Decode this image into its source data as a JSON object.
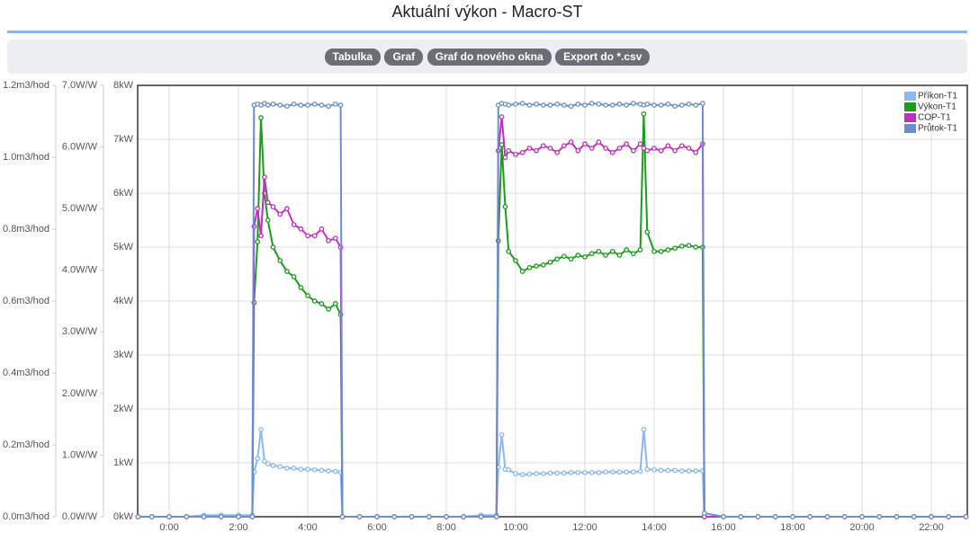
{
  "header": {
    "title": "Aktuální výkon - Macro-ST"
  },
  "toolbar": {
    "buttons": [
      "Tabulka",
      "Graf",
      "Graf do nového okna",
      "Export do *.csv"
    ]
  },
  "chart_data": {
    "type": "line",
    "grid": true,
    "legend": "top-right",
    "xlim": [
      -0.91,
      23.04
    ],
    "xticks": [
      {
        "value": 0,
        "label": "0:00"
      },
      {
        "value": 2,
        "label": "2:00"
      },
      {
        "value": 4,
        "label": "4:00"
      },
      {
        "value": 6,
        "label": "6:00"
      },
      {
        "value": 8,
        "label": "8:00"
      },
      {
        "value": 10,
        "label": "10:00"
      },
      {
        "value": 12,
        "label": "12:00"
      },
      {
        "value": 14,
        "label": "14:00"
      },
      {
        "value": 16,
        "label": "16:00"
      },
      {
        "value": 18,
        "label": "18:00"
      },
      {
        "value": 20,
        "label": "20:00"
      },
      {
        "value": 22,
        "label": "22:00"
      }
    ],
    "ylim": [
      0,
      8
    ],
    "yticks": [
      {
        "value": 0,
        "label": "0kW"
      },
      {
        "value": 1,
        "label": "1kW"
      },
      {
        "value": 2,
        "label": "2kW"
      },
      {
        "value": 3,
        "label": "3kW"
      },
      {
        "value": 4,
        "label": "4kW"
      },
      {
        "value": 5,
        "label": "5kW"
      },
      {
        "value": 6,
        "label": "6kW"
      },
      {
        "value": 7,
        "label": "7kW"
      },
      {
        "value": 8,
        "label": "8kW"
      }
    ],
    "y2lim": [
      0,
      7
    ],
    "y2ticks": [
      {
        "value": 0,
        "label": "0.0W/W"
      },
      {
        "value": 1,
        "label": "1.0W/W"
      },
      {
        "value": 2,
        "label": "2.0W/W"
      },
      {
        "value": 3,
        "label": "3.0W/W"
      },
      {
        "value": 4,
        "label": "4.0W/W"
      },
      {
        "value": 5,
        "label": "5.0W/W"
      },
      {
        "value": 6,
        "label": "6.0W/W"
      },
      {
        "value": 7,
        "label": "7.0W/W"
      }
    ],
    "y3lim": [
      0,
      1.2
    ],
    "y3ticks": [
      {
        "value": 0,
        "label": "0.0m3/hod"
      },
      {
        "value": 0.2,
        "label": "0.2m3/hod"
      },
      {
        "value": 0.4,
        "label": "0.4m3/hod"
      },
      {
        "value": 0.6,
        "label": "0.6m3/hod"
      },
      {
        "value": 0.8,
        "label": "0.8m3/hod"
      },
      {
        "value": 1,
        "label": "1.0m3/hod"
      },
      {
        "value": 1.2,
        "label": "1.2m3/hod"
      }
    ],
    "x": [
      -0.9,
      -0.5,
      0,
      0.5,
      1,
      1.5,
      2,
      2.4,
      2.45,
      2.55,
      2.65,
      2.75,
      2.85,
      3.0,
      3.2,
      3.4,
      3.6,
      3.8,
      4.0,
      4.2,
      4.4,
      4.6,
      4.8,
      4.95,
      5.0,
      5.5,
      6,
      6.5,
      7,
      7.5,
      8,
      8.5,
      9,
      9.45,
      9.5,
      9.6,
      9.7,
      9.8,
      10.0,
      10.2,
      10.4,
      10.6,
      10.8,
      11.0,
      11.2,
      11.4,
      11.6,
      11.8,
      12.0,
      12.2,
      12.4,
      12.6,
      12.8,
      13.0,
      13.2,
      13.4,
      13.6,
      13.7,
      13.8,
      14.0,
      14.2,
      14.4,
      14.6,
      14.8,
      15.0,
      15.2,
      15.4,
      15.45,
      16,
      16.5,
      17,
      17.5,
      18,
      18.5,
      19,
      19.5,
      20,
      20.5,
      21,
      21.5,
      22,
      22.5,
      23
    ],
    "series": [
      {
        "name": "Příkon-T1",
        "color": "#8ab8f0",
        "values": [
          0,
          0,
          0,
          0,
          0.03,
          0.03,
          0.03,
          0.03,
          0.83,
          1.08,
          1.62,
          1.03,
          0.98,
          0.95,
          0.93,
          0.9,
          0.9,
          0.88,
          0.88,
          0.87,
          0.86,
          0.85,
          0.84,
          0.82,
          0,
          0,
          0,
          0,
          0,
          0,
          0,
          0,
          0.03,
          0.03,
          0.92,
          1.52,
          0.88,
          0.87,
          0.8,
          0.78,
          0.79,
          0.8,
          0.8,
          0.81,
          0.81,
          0.81,
          0.82,
          0.82,
          0.82,
          0.82,
          0.82,
          0.83,
          0.83,
          0.83,
          0.83,
          0.83,
          0.84,
          1.62,
          0.88,
          0.87,
          0.86,
          0.86,
          0.86,
          0.85,
          0.85,
          0.85,
          0.85,
          0,
          0,
          0,
          0,
          0,
          0,
          0,
          0,
          0,
          0,
          0,
          0,
          0,
          0,
          0,
          0
        ]
      },
      {
        "name": "Výkon-T1",
        "color": "#1a9e1a",
        "values": [
          0,
          0,
          0,
          0,
          0,
          0,
          0,
          0,
          3.97,
          5.1,
          7.4,
          6.0,
          5.5,
          5.0,
          4.75,
          4.55,
          4.45,
          4.25,
          4.1,
          4.0,
          3.95,
          3.85,
          3.95,
          3.75,
          0,
          0,
          0,
          0,
          0,
          0,
          0,
          0,
          0,
          0,
          5.12,
          6.9,
          5.75,
          4.92,
          4.75,
          4.55,
          4.62,
          4.65,
          4.67,
          4.72,
          4.78,
          4.83,
          4.78,
          4.85,
          4.82,
          4.88,
          4.92,
          4.85,
          4.92,
          4.85,
          4.95,
          4.88,
          4.95,
          7.47,
          5.28,
          4.92,
          4.92,
          4.95,
          4.98,
          5.02,
          5.03,
          5.0,
          5.0,
          0,
          0,
          0,
          0,
          0,
          0,
          0,
          0,
          0,
          0,
          0,
          0,
          0,
          0,
          0,
          0
        ]
      },
      {
        "name": "COP-T1",
        "color": "#c030c0",
        "axis": "y2",
        "values": [
          0,
          0,
          0,
          0,
          0,
          0,
          0,
          0,
          4.71,
          5.0,
          4.56,
          5.51,
          5.1,
          5.03,
          4.91,
          5.0,
          4.74,
          4.67,
          4.56,
          4.56,
          4.67,
          4.48,
          4.52,
          4.37,
          0,
          0,
          0,
          0,
          0,
          0,
          0,
          0,
          0,
          0,
          5.94,
          6.49,
          5.83,
          5.94,
          5.88,
          5.91,
          5.98,
          5.94,
          6.02,
          5.98,
          5.91,
          6.02,
          6.08,
          5.94,
          6.05,
          5.98,
          6.08,
          5.98,
          5.91,
          5.98,
          6.05,
          5.94,
          6.05,
          5.98,
          5.94,
          5.98,
          5.94,
          6.02,
          5.94,
          6.02,
          5.98,
          5.91,
          6.05,
          0,
          0,
          0,
          0,
          0,
          0,
          0,
          0,
          0,
          0,
          0,
          0,
          0,
          0,
          0,
          0
        ]
      },
      {
        "name": "Průtok-T1",
        "color": "#6a8fd0",
        "axis": "y3",
        "values": [
          0,
          0,
          0,
          0,
          0,
          0,
          0,
          0,
          1.145,
          1.148,
          1.145,
          1.15,
          1.145,
          1.148,
          1.145,
          1.142,
          1.148,
          1.145,
          1.145,
          1.148,
          1.145,
          1.142,
          1.148,
          1.145,
          0,
          0,
          0,
          0,
          0,
          0,
          0,
          0,
          0,
          0,
          1.145,
          1.15,
          1.148,
          1.145,
          1.148,
          1.15,
          1.145,
          1.148,
          1.145,
          1.145,
          1.148,
          1.145,
          1.142,
          1.148,
          1.145,
          1.15,
          1.148,
          1.145,
          1.145,
          1.148,
          1.145,
          1.15,
          1.148,
          1.145,
          1.148,
          1.145,
          1.145,
          1.148,
          1.142,
          1.145,
          1.148,
          1.145,
          1.15,
          0.01,
          0,
          0,
          0,
          0,
          0,
          0,
          0,
          0,
          0,
          0,
          0,
          0,
          0,
          0,
          0
        ]
      }
    ]
  }
}
